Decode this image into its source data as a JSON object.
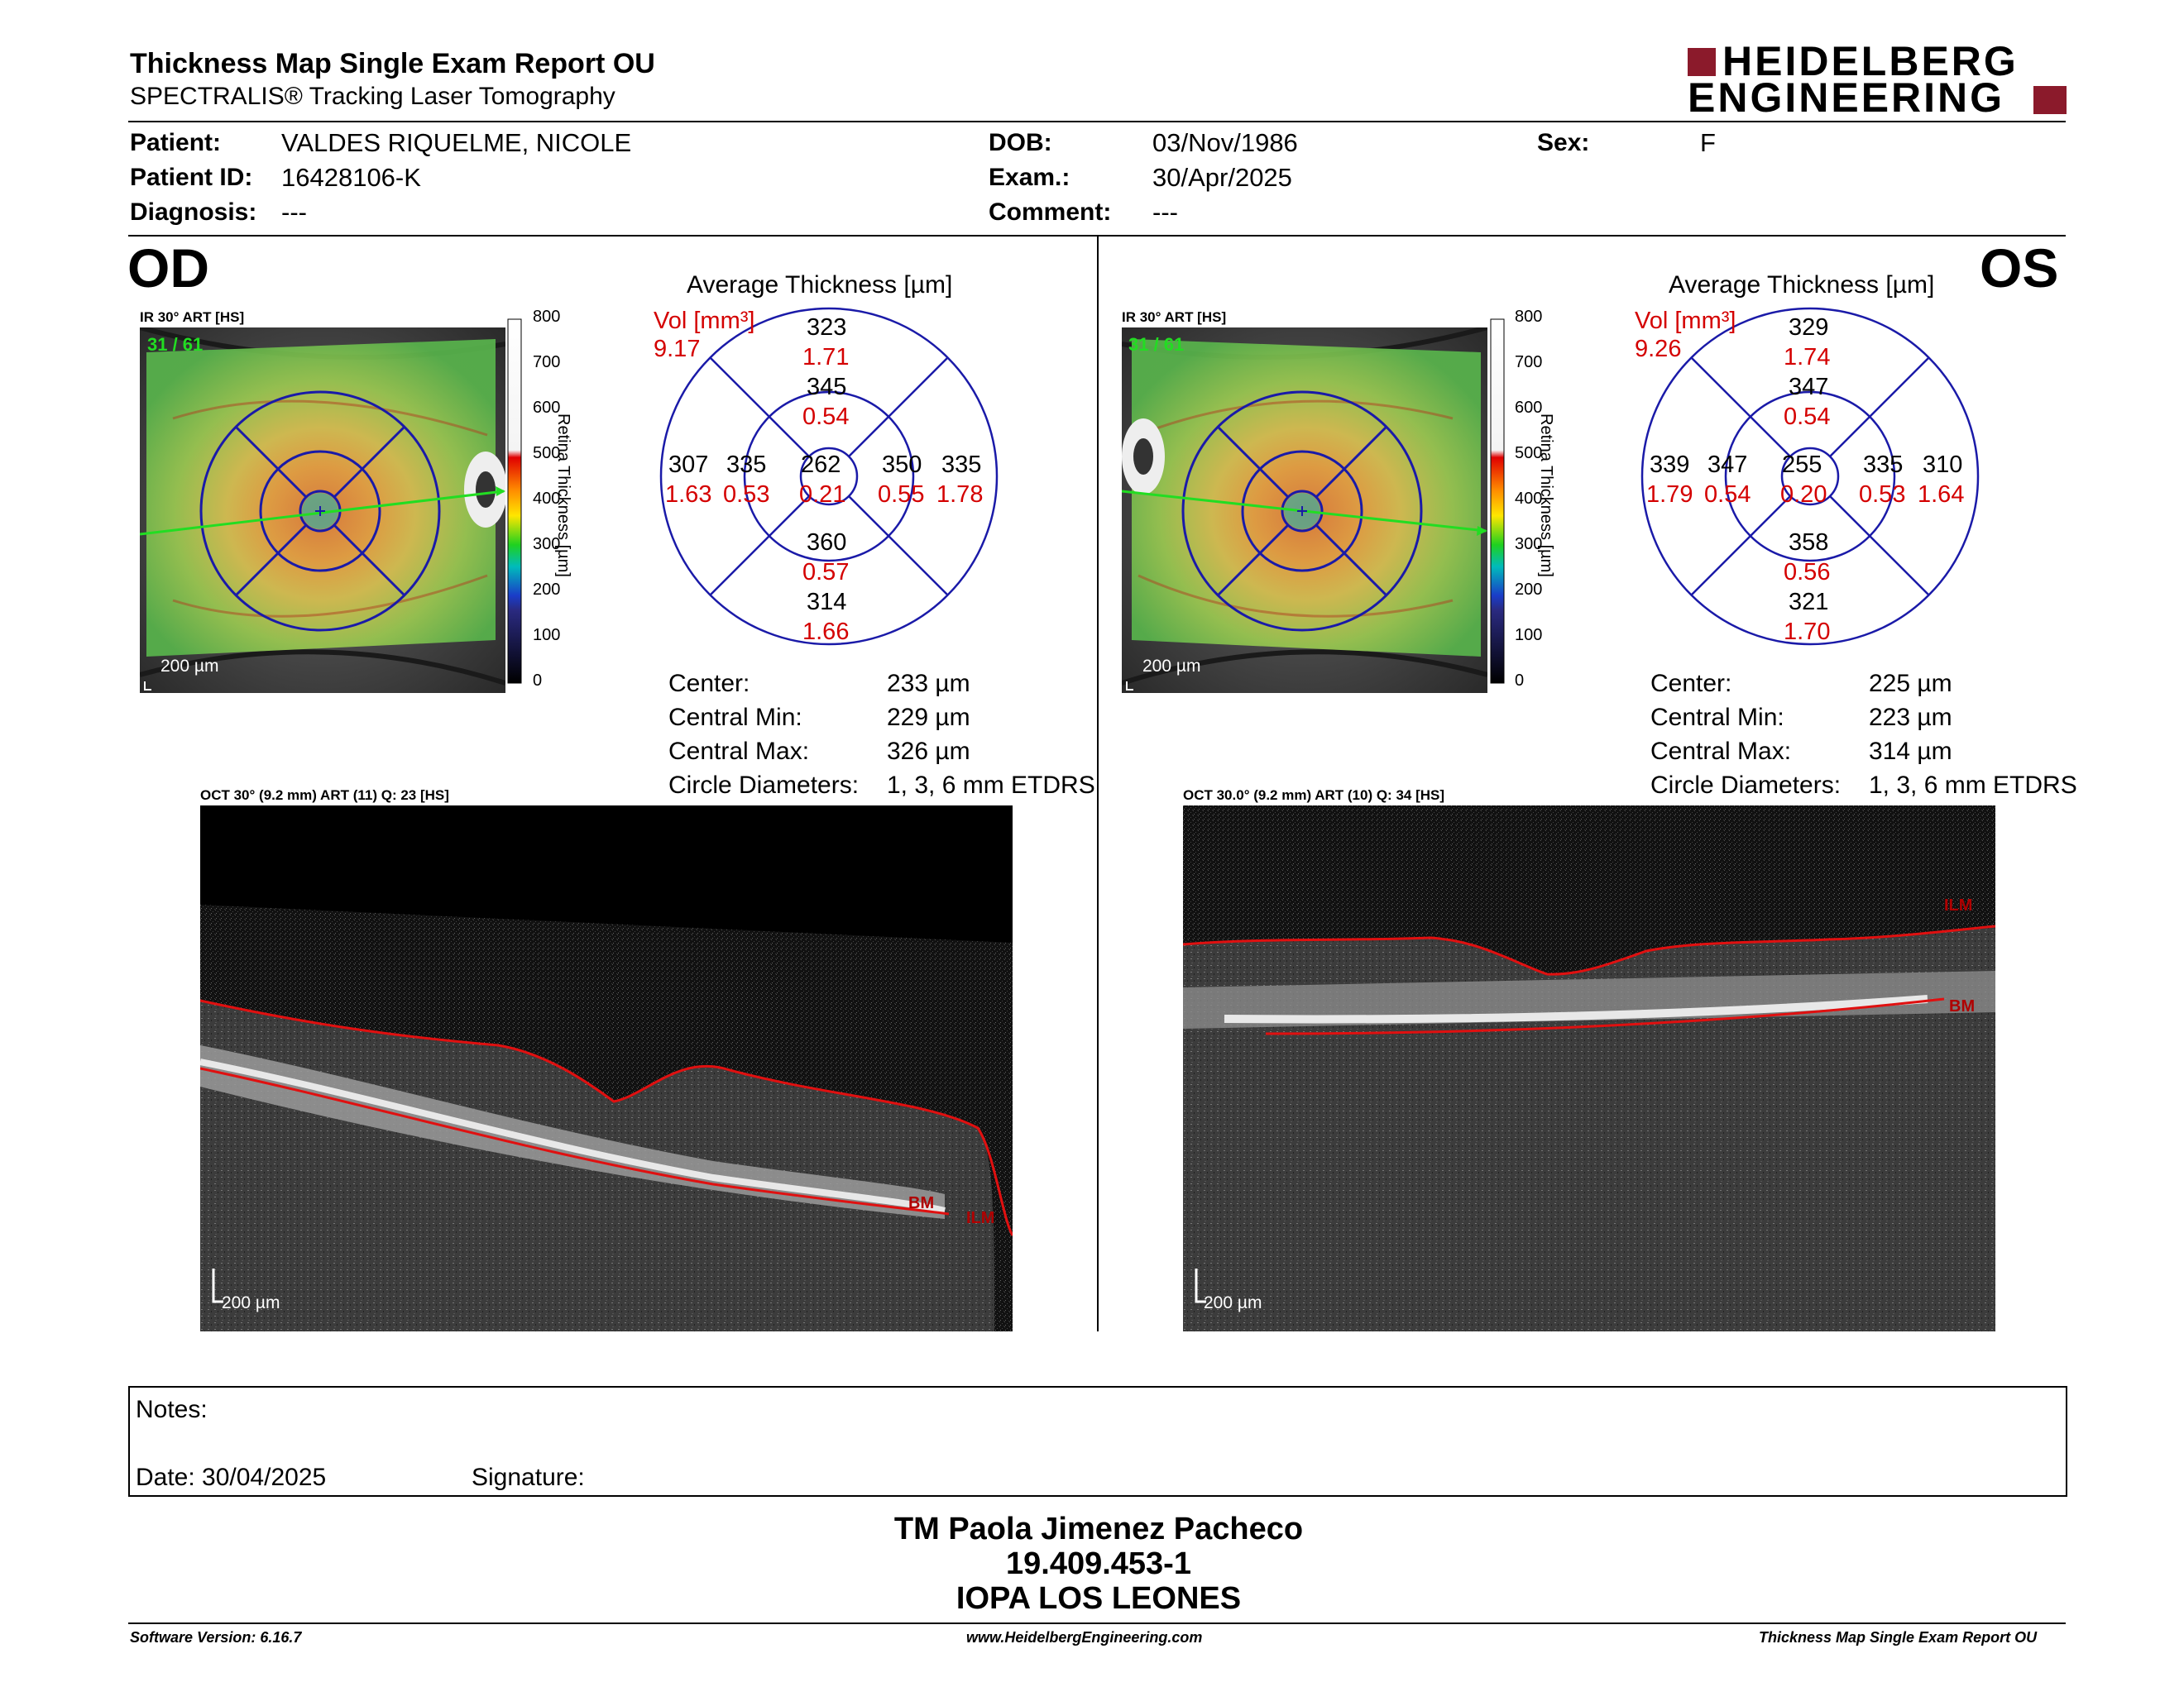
{
  "header": {
    "title": "Thickness Map Single Exam Report OU",
    "subtitle": "SPECTRALIS® Tracking Laser Tomography",
    "logo_line1": "HEIDELBERG",
    "logo_line2": "ENGINEERING"
  },
  "patient": {
    "patient_label": "Patient:",
    "patient_value": "VALDES RIQUELME, NICOLE",
    "id_label": "Patient ID:",
    "id_value": "16428106-K",
    "diagnosis_label": "Diagnosis:",
    "diagnosis_value": "---",
    "dob_label": "DOB:",
    "dob_value": "03/Nov/1986",
    "exam_label": "Exam.:",
    "exam_value": "30/Apr/2025",
    "comment_label": "Comment:",
    "comment_value": "---",
    "sex_label": "Sex:",
    "sex_value": "F"
  },
  "od": {
    "eye_label": "OD",
    "ir_label": "IR 30° ART [HS]",
    "frame_counter": "31 / 61",
    "scale_label": "200 µm",
    "colorbar_ticks": [
      "800",
      "700",
      "600",
      "500",
      "400",
      "300",
      "200",
      "100",
      "0"
    ],
    "colorbar_title": "Retina Thickness [µm]",
    "avg_title": "Average Thickness [µm]",
    "vol_label": "Vol [mm³]",
    "vol_value": "9.17",
    "sectors": {
      "outer_sup": {
        "t": "323",
        "v": "1.71"
      },
      "inner_sup": {
        "t": "345",
        "v": "0.54"
      },
      "outer_left": {
        "t": "307",
        "v": "1.63"
      },
      "inner_left": {
        "t": "335",
        "v": "0.53"
      },
      "center": {
        "t": "262",
        "v": "0.21"
      },
      "inner_right": {
        "t": "350",
        "v": "0.55"
      },
      "outer_right": {
        "t": "335",
        "v": "1.78"
      },
      "inner_inf": {
        "t": "360",
        "v": "0.57"
      },
      "outer_inf": {
        "t": "314",
        "v": "1.66"
      }
    },
    "stats": [
      {
        "label": "Center:",
        "value": "233 µm"
      },
      {
        "label": "Central Min:",
        "value": "229 µm"
      },
      {
        "label": "Central Max:",
        "value": "326 µm"
      },
      {
        "label": "Circle Diameters:",
        "value": "1, 3, 6 mm ETDRS"
      }
    ],
    "oct_label": "OCT 30° (9.2 mm) ART (11) Q: 23 [HS]",
    "oct_bm": "BM",
    "oct_ilm": "ILM",
    "oct_scale": "200 µm"
  },
  "os": {
    "eye_label": "OS",
    "ir_label": "IR 30° ART [HS]",
    "frame_counter": "31 / 61",
    "scale_label": "200 µm",
    "colorbar_ticks": [
      "800",
      "700",
      "600",
      "500",
      "400",
      "300",
      "200",
      "100",
      "0"
    ],
    "colorbar_title": "Retina Thickness [µm]",
    "avg_title": "Average Thickness [µm]",
    "vol_label": "Vol [mm³]",
    "vol_value": "9.26",
    "sectors": {
      "outer_sup": {
        "t": "329",
        "v": "1.74"
      },
      "inner_sup": {
        "t": "347",
        "v": "0.54"
      },
      "outer_left": {
        "t": "339",
        "v": "1.79"
      },
      "inner_left": {
        "t": "347",
        "v": "0.54"
      },
      "center": {
        "t": "255",
        "v": "0.20"
      },
      "inner_right": {
        "t": "335",
        "v": "0.53"
      },
      "outer_right": {
        "t": "310",
        "v": "1.64"
      },
      "inner_inf": {
        "t": "358",
        "v": "0.56"
      },
      "outer_inf": {
        "t": "321",
        "v": "1.70"
      }
    },
    "stats": [
      {
        "label": "Center:",
        "value": "225 µm"
      },
      {
        "label": "Central Min:",
        "value": "223 µm"
      },
      {
        "label": "Central Max:",
        "value": "314 µm"
      },
      {
        "label": "Circle Diameters:",
        "value": "1, 3, 6 mm ETDRS"
      }
    ],
    "oct_label": "OCT 30.0° (9.2 mm) ART (10) Q: 34 [HS]",
    "oct_bm": "BM",
    "oct_ilm": "ILM",
    "oct_scale": "200 µm"
  },
  "notes": {
    "notes_label": "Notes:",
    "date_label": "Date: 30/04/2025",
    "signature_label": "Signature:"
  },
  "signer": {
    "name": "TM Paola Jimenez Pacheco",
    "id": "19.409.453-1",
    "org": "IOPA LOS LEONES"
  },
  "footer": {
    "software": "Software Version: 6.16.7",
    "website": "www.HeidelbergEngineering.com",
    "report": "Thickness Map Single Exam Report OU"
  },
  "colors": {
    "grid_blue": "#1a1aa8",
    "value_red": "#d40000",
    "logo_red": "#8b1a2b",
    "scan_green": "#22dd22"
  }
}
